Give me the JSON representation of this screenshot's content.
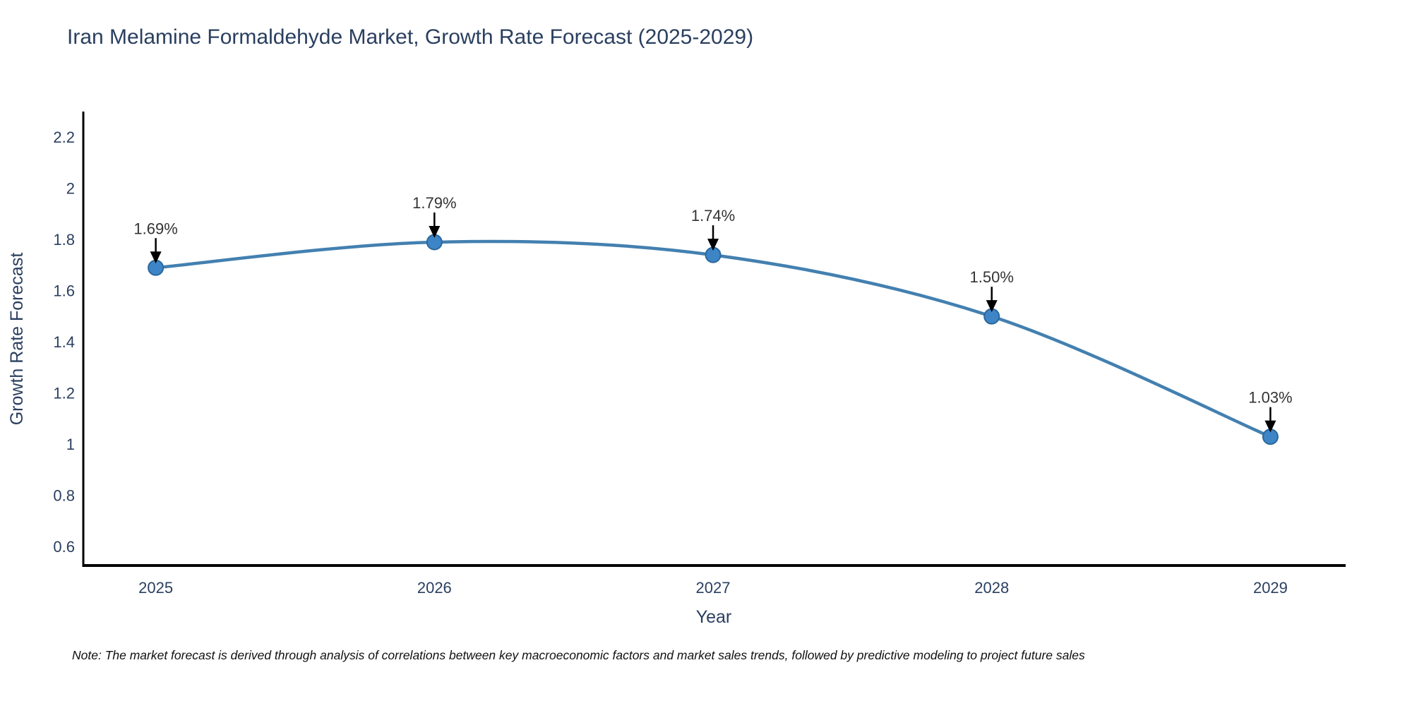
{
  "chart_data": {
    "type": "line",
    "title": "Iran Melamine Formaldehyde Market, Growth Rate Forecast (2025-2029)",
    "xlabel": "Year",
    "ylabel": "Growth Rate Forecast",
    "x": [
      2025,
      2026,
      2027,
      2028,
      2029
    ],
    "y": [
      1.69,
      1.79,
      1.74,
      1.5,
      1.03
    ],
    "point_labels": [
      "1.69%",
      "1.79%",
      "1.74%",
      "1.50%",
      "1.03%"
    ],
    "xticks": [
      2025,
      2026,
      2027,
      2028,
      2029
    ],
    "yticks": [
      0.6,
      0.8,
      1,
      1.2,
      1.4,
      1.6,
      1.8,
      2,
      2.2
    ],
    "xlim": [
      2024.74,
      2029.27
    ],
    "ylim": [
      0.53,
      2.3
    ],
    "grid": false,
    "legend": null,
    "colors": {
      "line": "#4380b0",
      "marker_fill": "#3d85c6",
      "marker_edge": "#2b689c",
      "axis_line": "#000000",
      "tick_text": "#2a3f5f",
      "annotation_text": "#333333",
      "annotation_arrow": "#000000",
      "title_text": "#2a3f5f"
    }
  },
  "note": {
    "text": "Note: The market forecast is derived through analysis of correlations between key macroeconomic factors and market sales trends, followed by predictive modeling to project future sales"
  }
}
